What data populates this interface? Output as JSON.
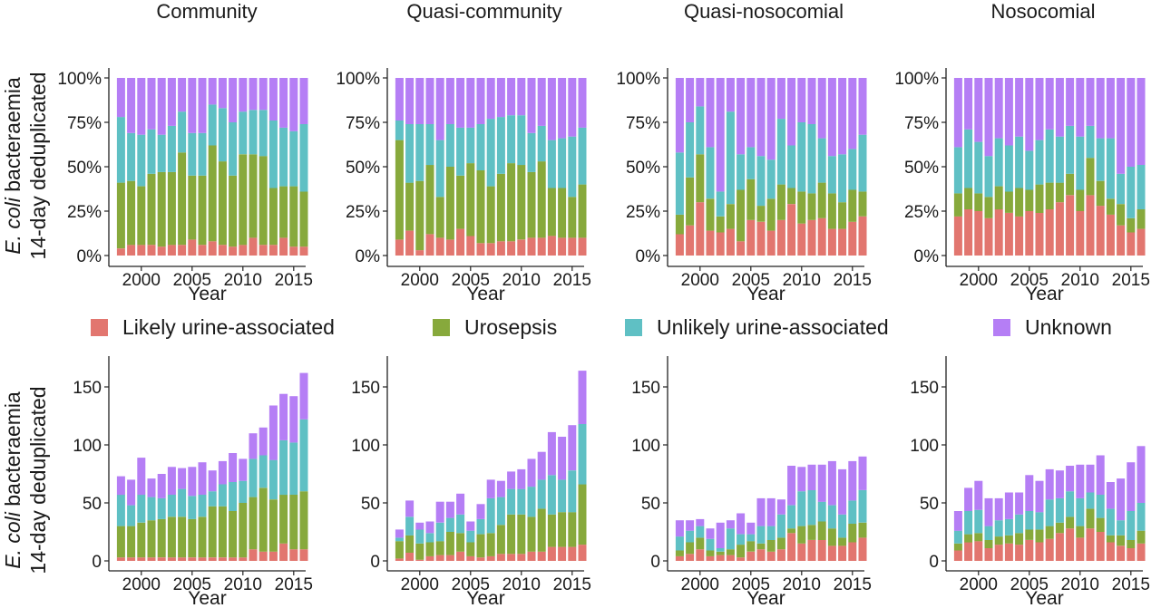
{
  "figure": {
    "ylabel_italic": "E. coli",
    "ylabel_rest": " bacteraemia",
    "ylabel_line2": "14-day deduplicated",
    "xlabel": "Year",
    "x_ticks": [
      "2000",
      "2005",
      "2010",
      "2015"
    ],
    "top_y_ticks": [
      "0%",
      "25%",
      "50%",
      "75%",
      "100%"
    ],
    "bottom_y_ticks": [
      "0",
      "50",
      "100",
      "150"
    ],
    "panel_titles": [
      "Community",
      "Quasi-community",
      "Quasi-nosocomial",
      "Nosocomial"
    ]
  },
  "legend": {
    "items": [
      {
        "label": "Likely urine-associated",
        "color": "#e2766f"
      },
      {
        "label": "Urosepsis",
        "color": "#87a93c"
      },
      {
        "label": "Unlikely urine-associated",
        "color": "#5fc0c4"
      },
      {
        "label": "Unknown",
        "color": "#b57ef5"
      }
    ]
  },
  "colors": {
    "Likely urine-associated": "#e2766f",
    "Urosepsis": "#87a93c",
    "Unlikely urine-associated": "#5fc0c4",
    "Unknown": "#b57ef5"
  },
  "chart_data": [
    {
      "type": "bar",
      "stacked": true,
      "normalized": true,
      "title": "Community",
      "xlabel": "Year",
      "ylabel": "E. coli bacteraemia 14-day deduplicated",
      "x": [
        1998,
        1999,
        2000,
        2001,
        2002,
        2003,
        2004,
        2005,
        2006,
        2007,
        2008,
        2009,
        2010,
        2011,
        2012,
        2013,
        2014,
        2015,
        2016
      ],
      "ylim": [
        0,
        100
      ],
      "y_unit": "%",
      "series": [
        {
          "name": "Likely urine-associated",
          "values": [
            4,
            6,
            6,
            6,
            5,
            6,
            6,
            9,
            6,
            8,
            6,
            5,
            6,
            10,
            6,
            6,
            10,
            5,
            5
          ]
        },
        {
          "name": "Urosepsis",
          "values": [
            37,
            36,
            33,
            40,
            42,
            41,
            52,
            36,
            39,
            54,
            47,
            40,
            51,
            47,
            50,
            32,
            29,
            34,
            31
          ]
        },
        {
          "name": "Unlikely urine-associated",
          "values": [
            37,
            27,
            29,
            25,
            21,
            26,
            23,
            24,
            24,
            23,
            30,
            30,
            24,
            25,
            26,
            38,
            33,
            31,
            38
          ]
        },
        {
          "name": "Unknown",
          "values": [
            22,
            31,
            32,
            29,
            32,
            27,
            19,
            31,
            31,
            15,
            17,
            25,
            19,
            18,
            18,
            24,
            28,
            30,
            26
          ]
        }
      ]
    },
    {
      "type": "bar",
      "stacked": true,
      "normalized": true,
      "title": "Quasi-community",
      "xlabel": "Year",
      "ylabel": "E. coli bacteraemia 14-day deduplicated",
      "x": [
        1998,
        1999,
        2000,
        2001,
        2002,
        2003,
        2004,
        2005,
        2006,
        2007,
        2008,
        2009,
        2010,
        2011,
        2012,
        2013,
        2014,
        2015,
        2016
      ],
      "ylim": [
        0,
        100
      ],
      "y_unit": "%",
      "series": [
        {
          "name": "Likely urine-associated",
          "values": [
            9,
            14,
            3,
            12,
            10,
            9,
            15,
            11,
            7,
            7,
            8,
            8,
            9,
            10,
            10,
            11,
            10,
            10,
            10
          ]
        },
        {
          "name": "Urosepsis",
          "values": [
            56,
            27,
            39,
            39,
            23,
            41,
            30,
            41,
            41,
            32,
            38,
            44,
            42,
            37,
            43,
            27,
            28,
            23,
            30
          ]
        },
        {
          "name": "Unlikely urine-associated",
          "values": [
            11,
            33,
            32,
            23,
            32,
            24,
            27,
            20,
            26,
            38,
            32,
            27,
            28,
            22,
            20,
            27,
            28,
            34,
            32
          ]
        },
        {
          "name": "Unknown",
          "values": [
            24,
            26,
            26,
            26,
            35,
            26,
            28,
            28,
            26,
            23,
            22,
            21,
            21,
            31,
            27,
            35,
            34,
            33,
            28
          ]
        }
      ]
    },
    {
      "type": "bar",
      "stacked": true,
      "normalized": true,
      "title": "Quasi-nosocomial",
      "xlabel": "Year",
      "ylabel": "E. coli bacteraemia 14-day deduplicated",
      "x": [
        1998,
        1999,
        2000,
        2001,
        2002,
        2003,
        2004,
        2005,
        2006,
        2007,
        2008,
        2009,
        2010,
        2011,
        2012,
        2013,
        2014,
        2015,
        2016
      ],
      "ylim": [
        0,
        100
      ],
      "y_unit": "%",
      "series": [
        {
          "name": "Likely urine-associated",
          "values": [
            12,
            17,
            30,
            14,
            13,
            15,
            8,
            20,
            19,
            14,
            20,
            29,
            18,
            20,
            21,
            15,
            15,
            19,
            22
          ]
        },
        {
          "name": "Urosepsis",
          "values": [
            11,
            27,
            27,
            18,
            9,
            14,
            29,
            23,
            9,
            18,
            20,
            9,
            18,
            15,
            20,
            20,
            15,
            18,
            14
          ]
        },
        {
          "name": "Unlikely urine-associated",
          "values": [
            35,
            31,
            27,
            29,
            14,
            52,
            20,
            18,
            28,
            22,
            37,
            24,
            39,
            39,
            25,
            21,
            27,
            23,
            32
          ]
        },
        {
          "name": "Unknown",
          "values": [
            42,
            25,
            16,
            39,
            64,
            19,
            43,
            39,
            44,
            46,
            23,
            38,
            25,
            26,
            34,
            44,
            43,
            40,
            32
          ]
        }
      ]
    },
    {
      "type": "bar",
      "stacked": true,
      "normalized": true,
      "title": "Nosocomial",
      "xlabel": "Year",
      "ylabel": "E. coli bacteraemia 14-day deduplicated",
      "x": [
        1998,
        1999,
        2000,
        2001,
        2002,
        2003,
        2004,
        2005,
        2006,
        2007,
        2008,
        2009,
        2010,
        2011,
        2012,
        2013,
        2014,
        2015,
        2016
      ],
      "ylim": [
        0,
        100
      ],
      "y_unit": "%",
      "series": [
        {
          "name": "Likely urine-associated",
          "values": [
            22,
            26,
            25,
            21,
            26,
            24,
            22,
            25,
            24,
            26,
            30,
            34,
            25,
            34,
            28,
            23,
            17,
            13,
            15
          ]
        },
        {
          "name": "Urosepsis",
          "values": [
            13,
            12,
            10,
            12,
            13,
            12,
            16,
            12,
            16,
            15,
            11,
            12,
            12,
            21,
            14,
            9,
            12,
            8,
            11
          ]
        },
        {
          "name": "Unlikely urine-associated",
          "values": [
            26,
            33,
            29,
            23,
            27,
            26,
            29,
            22,
            25,
            30,
            26,
            27,
            30,
            18,
            24,
            34,
            17,
            29,
            25
          ]
        },
        {
          "name": "Unknown",
          "values": [
            39,
            29,
            36,
            44,
            34,
            38,
            33,
            41,
            35,
            29,
            33,
            27,
            33,
            27,
            34,
            34,
            54,
            50,
            49
          ]
        }
      ]
    },
    {
      "type": "bar",
      "stacked": true,
      "title": "Community",
      "xlabel": "Year",
      "ylabel": "E. coli bacteraemia 14-day deduplicated",
      "x": [
        1998,
        1999,
        2000,
        2001,
        2002,
        2003,
        2004,
        2005,
        2006,
        2007,
        2008,
        2009,
        2010,
        2011,
        2012,
        2013,
        2014,
        2015,
        2016
      ],
      "ylim": [
        0,
        175
      ],
      "series": [
        {
          "name": "Likely urine-associated",
          "values": [
            3,
            3,
            3,
            3,
            3,
            3,
            3,
            3,
            3,
            3,
            3,
            3,
            3,
            10,
            8,
            8,
            15,
            10,
            10
          ]
        },
        {
          "name": "Urosepsis",
          "values": [
            27,
            27,
            30,
            32,
            33,
            35,
            35,
            33,
            35,
            44,
            44,
            40,
            47,
            45,
            55,
            45,
            42,
            47,
            50
          ]
        },
        {
          "name": "Unlikely urine-associated",
          "values": [
            27,
            18,
            24,
            20,
            18,
            19,
            24,
            20,
            19,
            13,
            19,
            25,
            19,
            33,
            28,
            34,
            47,
            45,
            62
          ]
        },
        {
          "name": "Unknown",
          "values": [
            16,
            22,
            32,
            16,
            21,
            24,
            18,
            25,
            28,
            18,
            20,
            25,
            19,
            22,
            24,
            47,
            40,
            40,
            40
          ]
        }
      ]
    },
    {
      "type": "bar",
      "stacked": true,
      "title": "Quasi-community",
      "xlabel": "Year",
      "ylabel": "E. coli bacteraemia 14-day deduplicated",
      "x": [
        1998,
        1999,
        2000,
        2001,
        2002,
        2003,
        2004,
        2005,
        2006,
        2007,
        2008,
        2009,
        2010,
        2011,
        2012,
        2013,
        2014,
        2015,
        2016
      ],
      "ylim": [
        0,
        175
      ],
      "series": [
        {
          "name": "Likely urine-associated",
          "values": [
            2,
            7,
            1,
            4,
            5,
            5,
            8,
            4,
            3,
            4,
            6,
            6,
            6,
            8,
            8,
            12,
            12,
            12,
            14
          ]
        },
        {
          "name": "Urosepsis",
          "values": [
            15,
            15,
            14,
            12,
            12,
            20,
            16,
            12,
            20,
            20,
            25,
            34,
            34,
            30,
            37,
            28,
            30,
            30,
            52
          ]
        },
        {
          "name": "Unlikely urine-associated",
          "values": [
            3,
            16,
            12,
            8,
            16,
            12,
            16,
            10,
            13,
            30,
            24,
            22,
            22,
            26,
            25,
            34,
            28,
            36,
            52
          ]
        },
        {
          "name": "Unknown",
          "values": [
            7,
            14,
            6,
            10,
            18,
            14,
            18,
            8,
            13,
            16,
            14,
            15,
            17,
            24,
            24,
            37,
            37,
            39,
            46
          ]
        }
      ]
    },
    {
      "type": "bar",
      "stacked": true,
      "title": "Quasi-nosocomial",
      "xlabel": "Year",
      "ylabel": "E. coli bacteraemia 14-day deduplicated",
      "x": [
        1998,
        1999,
        2000,
        2001,
        2002,
        2003,
        2004,
        2005,
        2006,
        2007,
        2008,
        2009,
        2010,
        2011,
        2012,
        2013,
        2014,
        2015,
        2016
      ],
      "ylim": [
        0,
        175
      ],
      "series": [
        {
          "name": "Likely urine-associated",
          "values": [
            4,
            6,
            10,
            4,
            5,
            5,
            3,
            8,
            10,
            8,
            10,
            24,
            15,
            18,
            18,
            13,
            13,
            16,
            20
          ]
        },
        {
          "name": "Urosepsis",
          "values": [
            5,
            10,
            10,
            5,
            3,
            5,
            11,
            9,
            5,
            10,
            10,
            4,
            15,
            13,
            16,
            15,
            7,
            16,
            13
          ]
        },
        {
          "name": "Unlikely urine-associated",
          "values": [
            12,
            10,
            10,
            10,
            3,
            18,
            9,
            6,
            15,
            12,
            20,
            20,
            30,
            30,
            17,
            20,
            20,
            20,
            28
          ]
        },
        {
          "name": "Unknown",
          "values": [
            14,
            9,
            6,
            9,
            22,
            7,
            18,
            10,
            24,
            24,
            13,
            34,
            21,
            22,
            32,
            38,
            39,
            34,
            29
          ]
        }
      ]
    },
    {
      "type": "bar",
      "stacked": true,
      "title": "Nosocomial",
      "xlabel": "Year",
      "ylabel": "E. coli bacteraemia 14-day deduplicated",
      "x": [
        1998,
        1999,
        2000,
        2001,
        2002,
        2003,
        2004,
        2005,
        2006,
        2007,
        2008,
        2009,
        2010,
        2011,
        2012,
        2013,
        2014,
        2015,
        2016
      ],
      "ylim": [
        0,
        175
      ],
      "series": [
        {
          "name": "Likely urine-associated",
          "values": [
            9,
            16,
            17,
            11,
            14,
            15,
            14,
            18,
            16,
            19,
            24,
            28,
            20,
            28,
            25,
            16,
            13,
            11,
            15
          ]
        },
        {
          "name": "Urosepsis",
          "values": [
            6,
            7,
            7,
            7,
            7,
            7,
            10,
            9,
            11,
            11,
            9,
            10,
            10,
            17,
            12,
            6,
            9,
            7,
            11
          ]
        },
        {
          "name": "Unlikely urine-associated",
          "values": [
            11,
            20,
            20,
            12,
            14,
            14,
            16,
            16,
            15,
            23,
            21,
            22,
            24,
            14,
            20,
            23,
            13,
            25,
            24
          ]
        },
        {
          "name": "Unknown",
          "values": [
            17,
            20,
            25,
            24,
            19,
            23,
            19,
            31,
            27,
            26,
            24,
            22,
            29,
            24,
            34,
            23,
            36,
            42,
            49
          ]
        }
      ]
    }
  ]
}
